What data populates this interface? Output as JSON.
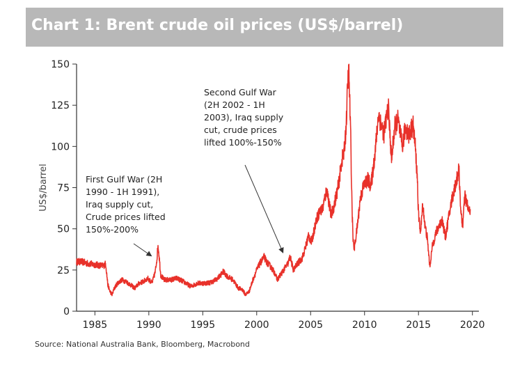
{
  "title": "Chart 1: Brent crude oil prices (US$/barrel)",
  "source": "Source: National Australia Bank, Bloomberg, Macrobond",
  "chart_data": {
    "type": "line",
    "title": "Chart 1: Brent crude oil prices (US$/barrel)",
    "xlabel": "",
    "ylabel": "US$/barrel",
    "xlim": [
      1983.3,
      2020.6
    ],
    "ylim": [
      0,
      150
    ],
    "x_ticks": [
      1985,
      1990,
      1995,
      2000,
      2005,
      2010,
      2015,
      2020
    ],
    "y_ticks": [
      0,
      25,
      50,
      75,
      100,
      125,
      150
    ],
    "grid": false,
    "line_color": "#e8312a",
    "series": [
      {
        "values": [
          [
            1983.3,
            30
          ],
          [
            1983.8,
            30
          ],
          [
            1984.3,
            29
          ],
          [
            1984.8,
            28.5
          ],
          [
            1985.3,
            28
          ],
          [
            1985.8,
            27.5
          ],
          [
            1986.0,
            29
          ],
          [
            1986.2,
            16
          ],
          [
            1986.4,
            12
          ],
          [
            1986.6,
            10
          ],
          [
            1986.8,
            14
          ],
          [
            1987.1,
            17
          ],
          [
            1987.5,
            19
          ],
          [
            1987.9,
            18
          ],
          [
            1988.3,
            16
          ],
          [
            1988.7,
            14
          ],
          [
            1989.1,
            17
          ],
          [
            1989.5,
            18
          ],
          [
            1989.9,
            20
          ],
          [
            1990.3,
            17
          ],
          [
            1990.6,
            24
          ],
          [
            1990.75,
            32
          ],
          [
            1990.85,
            40
          ],
          [
            1990.95,
            34
          ],
          [
            1991.1,
            22
          ],
          [
            1991.4,
            19
          ],
          [
            1992.0,
            19
          ],
          [
            1992.6,
            20
          ],
          [
            1993.2,
            18
          ],
          [
            1993.9,
            15
          ],
          [
            1994.5,
            17
          ],
          [
            1995.2,
            17
          ],
          [
            1995.8,
            17.5
          ],
          [
            1996.4,
            20
          ],
          [
            1996.9,
            24
          ],
          [
            1997.3,
            21
          ],
          [
            1997.8,
            19
          ],
          [
            1998.3,
            14
          ],
          [
            1998.7,
            13
          ],
          [
            1998.95,
            10
          ],
          [
            1999.3,
            12
          ],
          [
            1999.7,
            20
          ],
          [
            2000.0,
            25
          ],
          [
            2000.3,
            29
          ],
          [
            2000.7,
            33
          ],
          [
            2000.9,
            30
          ],
          [
            2001.3,
            27
          ],
          [
            2001.7,
            23
          ],
          [
            2001.9,
            19
          ],
          [
            2002.3,
            23
          ],
          [
            2002.7,
            27
          ],
          [
            2002.9,
            29
          ],
          [
            2003.1,
            33
          ],
          [
            2003.4,
            25
          ],
          [
            2003.8,
            29
          ],
          [
            2004.2,
            32
          ],
          [
            2004.5,
            38
          ],
          [
            2004.8,
            46
          ],
          [
            2005.1,
            42
          ],
          [
            2005.5,
            55
          ],
          [
            2005.8,
            60
          ],
          [
            2006.1,
            62
          ],
          [
            2006.5,
            74
          ],
          [
            2006.9,
            58
          ],
          [
            2007.2,
            65
          ],
          [
            2007.6,
            77
          ],
          [
            2007.9,
            92
          ],
          [
            2008.1,
            96
          ],
          [
            2008.3,
            113
          ],
          [
            2008.45,
            140
          ],
          [
            2008.55,
            145
          ],
          [
            2008.7,
            110
          ],
          [
            2008.85,
            60
          ],
          [
            2008.95,
            42
          ],
          [
            2009.05,
            38
          ],
          [
            2009.3,
            50
          ],
          [
            2009.6,
            68
          ],
          [
            2009.9,
            76
          ],
          [
            2010.3,
            80
          ],
          [
            2010.6,
            76
          ],
          [
            2010.9,
            92
          ],
          [
            2011.1,
            105
          ],
          [
            2011.3,
            120
          ],
          [
            2011.5,
            114
          ],
          [
            2011.8,
            108
          ],
          [
            2012.2,
            124
          ],
          [
            2012.5,
            92
          ],
          [
            2012.8,
            112
          ],
          [
            2013.1,
            116
          ],
          [
            2013.5,
            100
          ],
          [
            2013.8,
            112
          ],
          [
            2014.1,
            107
          ],
          [
            2014.5,
            113
          ],
          [
            2014.7,
            100
          ],
          [
            2014.9,
            80
          ],
          [
            2015.0,
            58
          ],
          [
            2015.2,
            48
          ],
          [
            2015.4,
            65
          ],
          [
            2015.6,
            52
          ],
          [
            2015.8,
            45
          ],
          [
            2016.0,
            31
          ],
          [
            2016.05,
            27
          ],
          [
            2016.3,
            40
          ],
          [
            2016.6,
            47
          ],
          [
            2016.9,
            52
          ],
          [
            2017.2,
            55
          ],
          [
            2017.5,
            45
          ],
          [
            2017.8,
            57
          ],
          [
            2018.1,
            68
          ],
          [
            2018.4,
            76
          ],
          [
            2018.75,
            86
          ],
          [
            2018.95,
            58
          ],
          [
            2019.1,
            52
          ],
          [
            2019.3,
            70
          ],
          [
            2019.5,
            65
          ],
          [
            2019.7,
            60
          ],
          [
            2019.8,
            62
          ]
        ]
      }
    ],
    "annotations": [
      {
        "text": [
          "First Gulf War (2H",
          "1990 - 1H 1991),",
          "Iraq supply cut,",
          "Crude prices lifted",
          "150%-200%"
        ],
        "target": [
          1990.5,
          31
        ]
      },
      {
        "text": [
          "Second Gulf War",
          "(2H 2002 - 1H",
          "2003), Iraq supply",
          "cut, crude prices",
          "lifted 100%-150%"
        ],
        "target": [
          2002.7,
          33
        ]
      }
    ]
  }
}
